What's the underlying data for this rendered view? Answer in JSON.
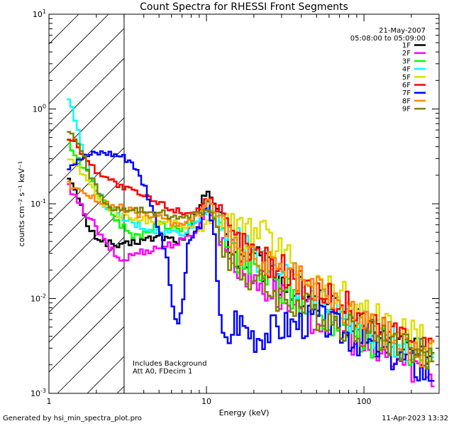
{
  "chart_data": {
    "type": "line",
    "title": "Count Spectra for RHESSI Front Segments",
    "xlabel": "Energy (keV)",
    "ylabel": "counts cm⁻² s⁻¹ keV⁻¹",
    "xscale": "log",
    "yscale": "log",
    "xlim": [
      1,
      300
    ],
    "ylim": [
      0.001,
      10
    ],
    "x_ticks": [
      {
        "value": 1,
        "label": "1"
      },
      {
        "value": 10,
        "label": "10"
      },
      {
        "value": 100,
        "label": "100"
      }
    ],
    "y_ticks": [
      {
        "value": 0.001,
        "base": "10",
        "exp": "-3"
      },
      {
        "value": 0.01,
        "base": "10",
        "exp": "-2"
      },
      {
        "value": 0.1,
        "base": "10",
        "exp": "-1"
      },
      {
        "value": 1,
        "base": "10",
        "exp": "0"
      },
      {
        "value": 10,
        "base": "10",
        "exp": "1"
      }
    ],
    "shaded_region": {
      "x": [
        1,
        3
      ],
      "style": "diagonal hatch"
    },
    "annotations": {
      "date": "21-May-2007",
      "time_range": "05:08:00 to 05:09:00",
      "background_note": "Includes Background",
      "attenuator_note": "Att A0, FDecim 1"
    },
    "series": [
      {
        "name": "1F",
        "color": "#000000",
        "points": [
          [
            1.3,
            0.2
          ],
          [
            1.5,
            0.11
          ],
          [
            1.8,
            0.05
          ],
          [
            2.2,
            0.04
          ],
          [
            2.8,
            0.035
          ],
          [
            3.5,
            0.04
          ],
          [
            5,
            0.045
          ],
          [
            7,
            0.04
          ],
          [
            8,
            0.06
          ],
          [
            9,
            0.1
          ],
          [
            10,
            0.14
          ],
          [
            12,
            0.07
          ],
          [
            15,
            0.03
          ],
          [
            20,
            0.025
          ],
          [
            30,
            0.015
          ],
          [
            50,
            0.009
          ],
          [
            80,
            0.006
          ],
          [
            120,
            0.004
          ],
          [
            200,
            0.003
          ],
          [
            280,
            0.0025
          ]
        ]
      },
      {
        "name": "2F",
        "color": "#ff00ff",
        "points": [
          [
            1.3,
            0.15
          ],
          [
            1.5,
            0.1
          ],
          [
            1.8,
            0.07
          ],
          [
            2.2,
            0.04
          ],
          [
            2.8,
            0.025
          ],
          [
            3.5,
            0.03
          ],
          [
            5,
            0.035
          ],
          [
            7,
            0.04
          ],
          [
            9,
            0.06
          ],
          [
            10,
            0.09
          ],
          [
            12,
            0.05
          ],
          [
            15,
            0.025
          ],
          [
            20,
            0.015
          ],
          [
            30,
            0.01
          ],
          [
            50,
            0.006
          ],
          [
            80,
            0.004
          ],
          [
            120,
            0.0025
          ],
          [
            200,
            0.002
          ],
          [
            280,
            0.0015
          ]
        ]
      },
      {
        "name": "3F",
        "color": "#00ff00",
        "points": [
          [
            1.3,
            0.45
          ],
          [
            1.5,
            0.3
          ],
          [
            1.8,
            0.18
          ],
          [
            2.2,
            0.1
          ],
          [
            2.8,
            0.06
          ],
          [
            3.5,
            0.045
          ],
          [
            5,
            0.06
          ],
          [
            7,
            0.055
          ],
          [
            9,
            0.07
          ],
          [
            10,
            0.1
          ],
          [
            12,
            0.06
          ],
          [
            15,
            0.03
          ],
          [
            20,
            0.02
          ],
          [
            30,
            0.012
          ],
          [
            50,
            0.007
          ],
          [
            80,
            0.005
          ],
          [
            120,
            0.003
          ],
          [
            200,
            0.0025
          ],
          [
            280,
            0.002
          ]
        ]
      },
      {
        "name": "4F",
        "color": "#00ffff",
        "points": [
          [
            1.3,
            1.25
          ],
          [
            1.5,
            0.6
          ],
          [
            1.8,
            0.2
          ],
          [
            2.2,
            0.1
          ],
          [
            2.8,
            0.07
          ],
          [
            3.5,
            0.06
          ],
          [
            5,
            0.05
          ],
          [
            7,
            0.05
          ],
          [
            9,
            0.07
          ],
          [
            10,
            0.09
          ],
          [
            12,
            0.08
          ],
          [
            15,
            0.04
          ],
          [
            20,
            0.03
          ],
          [
            30,
            0.02
          ],
          [
            50,
            0.01
          ],
          [
            80,
            0.006
          ],
          [
            120,
            0.004
          ],
          [
            200,
            0.003
          ],
          [
            280,
            0.0025
          ]
        ]
      },
      {
        "name": "5F",
        "color": "#dddd00",
        "points": [
          [
            1.3,
            0.3
          ],
          [
            1.5,
            0.25
          ],
          [
            1.8,
            0.15
          ],
          [
            2.2,
            0.1
          ],
          [
            2.8,
            0.075
          ],
          [
            3.5,
            0.07
          ],
          [
            5,
            0.065
          ],
          [
            7,
            0.06
          ],
          [
            9,
            0.05
          ],
          [
            10,
            0.07
          ],
          [
            12,
            0.06
          ],
          [
            15,
            0.05
          ],
          [
            20,
            0.05
          ],
          [
            25,
            0.045
          ],
          [
            30,
            0.03
          ],
          [
            50,
            0.015
          ],
          [
            80,
            0.01
          ],
          [
            120,
            0.006
          ],
          [
            200,
            0.004
          ],
          [
            280,
            0.003
          ]
        ]
      },
      {
        "name": "6F",
        "color": "#ff0000",
        "points": [
          [
            1.3,
            0.5
          ],
          [
            1.5,
            0.4
          ],
          [
            1.8,
            0.25
          ],
          [
            2.2,
            0.2
          ],
          [
            2.8,
            0.15
          ],
          [
            3.5,
            0.13
          ],
          [
            5,
            0.1
          ],
          [
            7,
            0.08
          ],
          [
            9,
            0.09
          ],
          [
            10,
            0.12
          ],
          [
            12,
            0.07
          ],
          [
            15,
            0.04
          ],
          [
            20,
            0.03
          ],
          [
            30,
            0.02
          ],
          [
            50,
            0.012
          ],
          [
            80,
            0.008
          ],
          [
            120,
            0.005
          ],
          [
            200,
            0.004
          ],
          [
            280,
            0.003
          ]
        ]
      },
      {
        "name": "7F",
        "color": "#0000ff",
        "points": [
          [
            1.3,
            0.25
          ],
          [
            1.5,
            0.3
          ],
          [
            1.8,
            0.33
          ],
          [
            2.2,
            0.35
          ],
          [
            2.8,
            0.32
          ],
          [
            3.3,
            0.28
          ],
          [
            4,
            0.15
          ],
          [
            5,
            0.05
          ],
          [
            5.5,
            0.025
          ],
          [
            6,
            0.008
          ],
          [
            6.5,
            0.005
          ],
          [
            7,
            0.01
          ],
          [
            7.5,
            0.035
          ],
          [
            8,
            0.045
          ],
          [
            9,
            0.06
          ],
          [
            10,
            0.1
          ],
          [
            11,
            0.05
          ],
          [
            12,
            0.005
          ],
          [
            13,
            0.003
          ],
          [
            15,
            0.006
          ],
          [
            20,
            0.004
          ],
          [
            30,
            0.005
          ],
          [
            50,
            0.006
          ],
          [
            80,
            0.004
          ],
          [
            120,
            0.003
          ],
          [
            200,
            0.002
          ],
          [
            280,
            0.0015
          ]
        ]
      },
      {
        "name": "8F",
        "color": "#ff8800",
        "points": [
          [
            1.3,
            0.16
          ],
          [
            1.5,
            0.15
          ],
          [
            1.8,
            0.12
          ],
          [
            2.2,
            0.1
          ],
          [
            2.8,
            0.09
          ],
          [
            3.5,
            0.08
          ],
          [
            5,
            0.07
          ],
          [
            7,
            0.06
          ],
          [
            9,
            0.08
          ],
          [
            10,
            0.11
          ],
          [
            12,
            0.06
          ],
          [
            15,
            0.03
          ],
          [
            20,
            0.025
          ],
          [
            30,
            0.02
          ],
          [
            50,
            0.012
          ],
          [
            80,
            0.007
          ],
          [
            120,
            0.005
          ],
          [
            200,
            0.003
          ],
          [
            280,
            0.0025
          ]
        ]
      },
      {
        "name": "9F",
        "color": "#808000",
        "points": [
          [
            1.3,
            0.55
          ],
          [
            1.5,
            0.45
          ],
          [
            1.8,
            0.2
          ],
          [
            2.2,
            0.1
          ],
          [
            2.8,
            0.085
          ],
          [
            3.5,
            0.085
          ],
          [
            5,
            0.08
          ],
          [
            7,
            0.07
          ],
          [
            9,
            0.08
          ],
          [
            10,
            0.09
          ],
          [
            12,
            0.05
          ],
          [
            15,
            0.02
          ],
          [
            20,
            0.015
          ],
          [
            30,
            0.01
          ],
          [
            50,
            0.007
          ],
          [
            80,
            0.005
          ],
          [
            120,
            0.004
          ],
          [
            200,
            0.003
          ],
          [
            280,
            0.002
          ]
        ]
      }
    ]
  },
  "footer": {
    "generated_by": "Generated by hsi_min_spectra_plot.pro",
    "timestamp": "11-Apr-2023 13:32"
  }
}
